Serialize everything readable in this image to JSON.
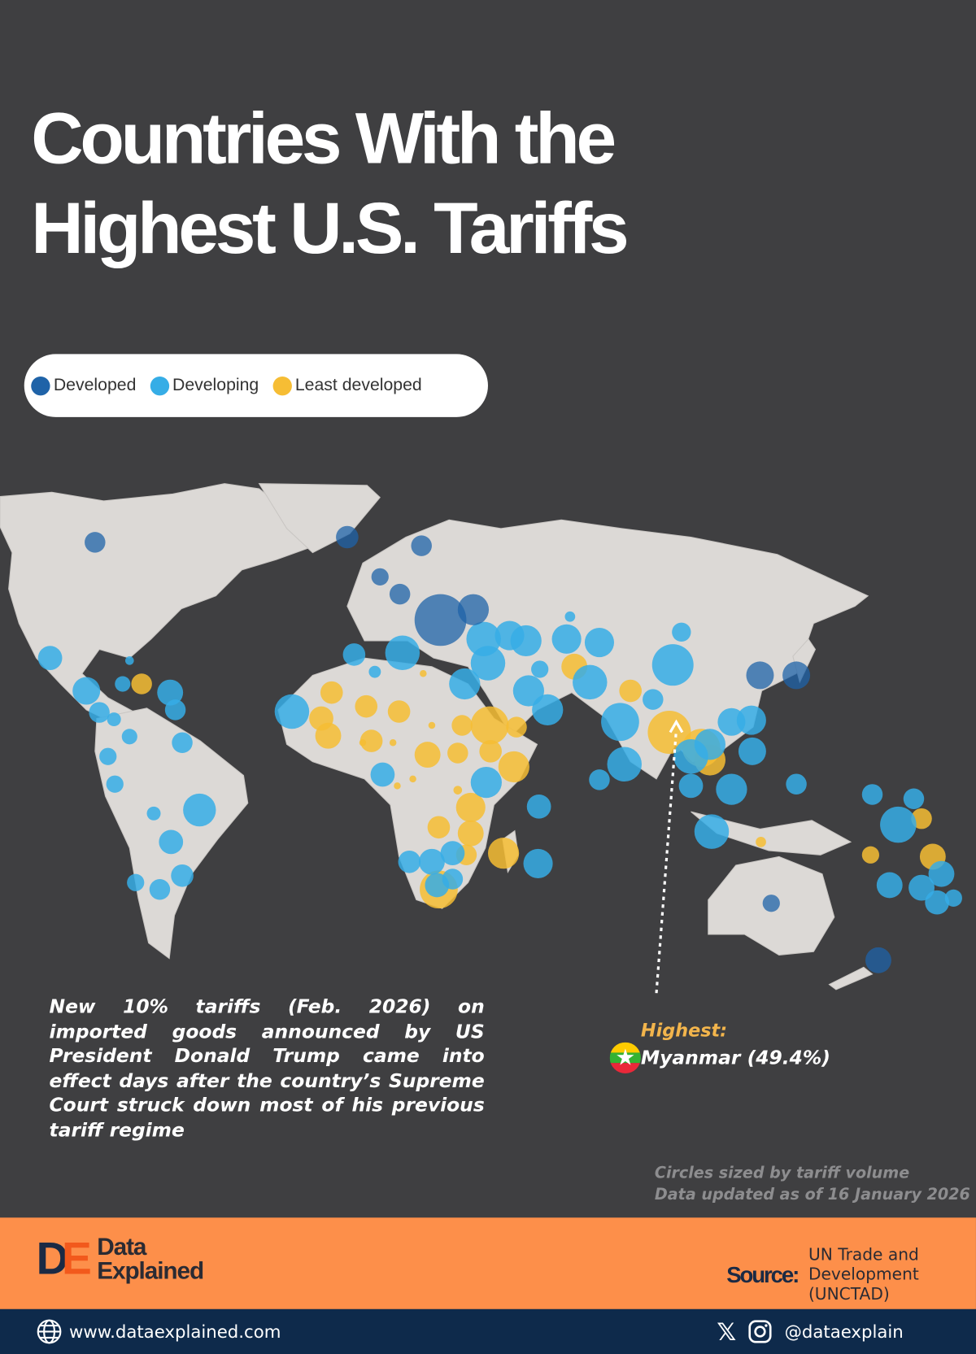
{
  "title": {
    "line1": "Countries With the",
    "line2": "Highest U.S. Tariffs"
  },
  "legend": [
    {
      "label": "Developed",
      "color": "#1f63a8"
    },
    {
      "label": "Developing",
      "color": "#36ade6"
    },
    {
      "label": "Least developed",
      "color": "#f6bd34"
    }
  ],
  "note": "New 10% tariffs (Feb. 2026) on imported goods announced by US President Donald Trump came into effect days after the country’s Supreme Court struck down most of his previous tariff regime",
  "highest": {
    "label": "Highest:",
    "country": "Myanmar (49.4%)",
    "flag_icon": "myanmar-flag"
  },
  "meta": {
    "line1": "Circles sized by tariff volume",
    "line2": "Data updated as of 16 January 2026"
  },
  "brand": {
    "logo_text": "DE",
    "name_line1": "Data",
    "name_line2": "Explained"
  },
  "source": {
    "label": "Source:",
    "value": "UN Trade and Development (UNCTAD)"
  },
  "footer": {
    "website": "www.dataexplained.com",
    "handle": "@dataexplain",
    "icons": [
      "globe-icon",
      "x-icon",
      "instagram-icon"
    ]
  },
  "colors": {
    "background": "#3f3f41",
    "band": "#fd8f4a",
    "footer": "#0e2a4b",
    "land": "#dcd9d6"
  }
}
